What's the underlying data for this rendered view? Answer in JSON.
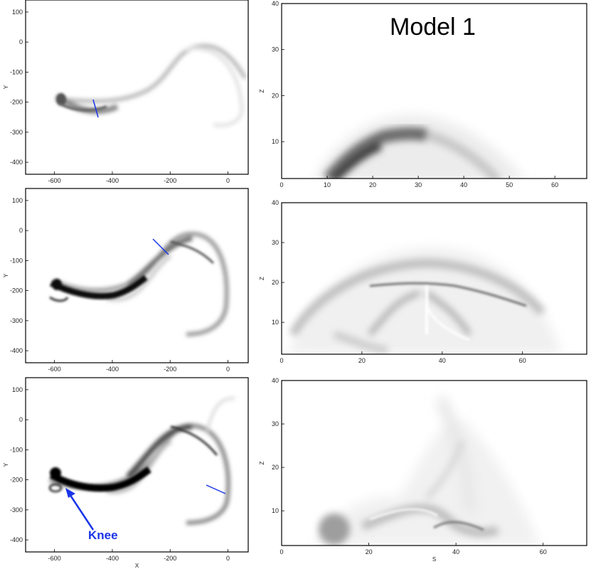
{
  "figure": {
    "title": "Model 1",
    "annotation": "Knee",
    "colors": {
      "frame": "#000000",
      "cut_line": "#1a35e8",
      "annotation": "#1a35e8",
      "ink": "#0a0a0a"
    }
  },
  "chart_data": [
    {
      "type": "heatmap",
      "panel": "left-top",
      "xlabel": "",
      "ylabel": "Y",
      "xlim": [
        -700,
        70
      ],
      "ylim": [
        -440,
        140
      ],
      "xticks": [
        "-600",
        "-400",
        "-200",
        "0"
      ],
      "yticks": [
        "100",
        "0",
        "-100",
        "-200",
        "-300",
        "-400"
      ],
      "cut": {
        "x": [
          -460,
          -450
        ],
        "y": [
          -160,
          -235
        ]
      },
      "intensity": 0.45
    },
    {
      "type": "heatmap",
      "panel": "right-top",
      "xlabel": "",
      "ylabel": "Z",
      "xlim": [
        0,
        67
      ],
      "ylim": [
        2,
        40
      ],
      "xticks": [
        "0",
        "10",
        "20",
        "30",
        "40",
        "50",
        "60"
      ],
      "yticks": [
        "10",
        "20",
        "30",
        "40"
      ]
    },
    {
      "type": "heatmap",
      "panel": "left-middle",
      "xlabel": "",
      "ylabel": "Y",
      "xlim": [
        -700,
        70
      ],
      "ylim": [
        -440,
        140
      ],
      "xticks": [
        "-600",
        "-400",
        "-200",
        "0"
      ],
      "yticks": [
        "100",
        "0",
        "-100",
        "-200",
        "-300",
        "-400"
      ],
      "cut": {
        "x": [
          -260,
          -210
        ],
        "y": [
          -15,
          -75
        ]
      },
      "intensity": 0.85
    },
    {
      "type": "heatmap",
      "panel": "right-middle",
      "xlabel": "",
      "ylabel": "Z",
      "xlim": [
        0,
        76
      ],
      "ylim": [
        2,
        40
      ],
      "xticks": [
        "0",
        "20",
        "40",
        "60"
      ],
      "yticks": [
        "10",
        "20",
        "30",
        "40"
      ]
    },
    {
      "type": "heatmap",
      "panel": "left-bottom",
      "xlabel": "X",
      "ylabel": "Y",
      "xlim": [
        -700,
        70
      ],
      "ylim": [
        -440,
        140
      ],
      "xticks": [
        "-600",
        "-400",
        "-200",
        "0"
      ],
      "yticks": [
        "100",
        "0",
        "-100",
        "-200",
        "-300",
        "-400"
      ],
      "cut": {
        "x": [
          -70,
          0
        ],
        "y": [
          -190,
          -220
        ]
      },
      "intensity": 1.0
    },
    {
      "type": "heatmap",
      "panel": "right-bottom",
      "xlabel": "S",
      "ylabel": "Z",
      "xlim": [
        0,
        70
      ],
      "ylim": [
        2,
        40
      ],
      "xticks": [
        "0",
        "20",
        "40",
        "60"
      ],
      "yticks": [
        "10",
        "20",
        "30",
        "40"
      ]
    }
  ]
}
